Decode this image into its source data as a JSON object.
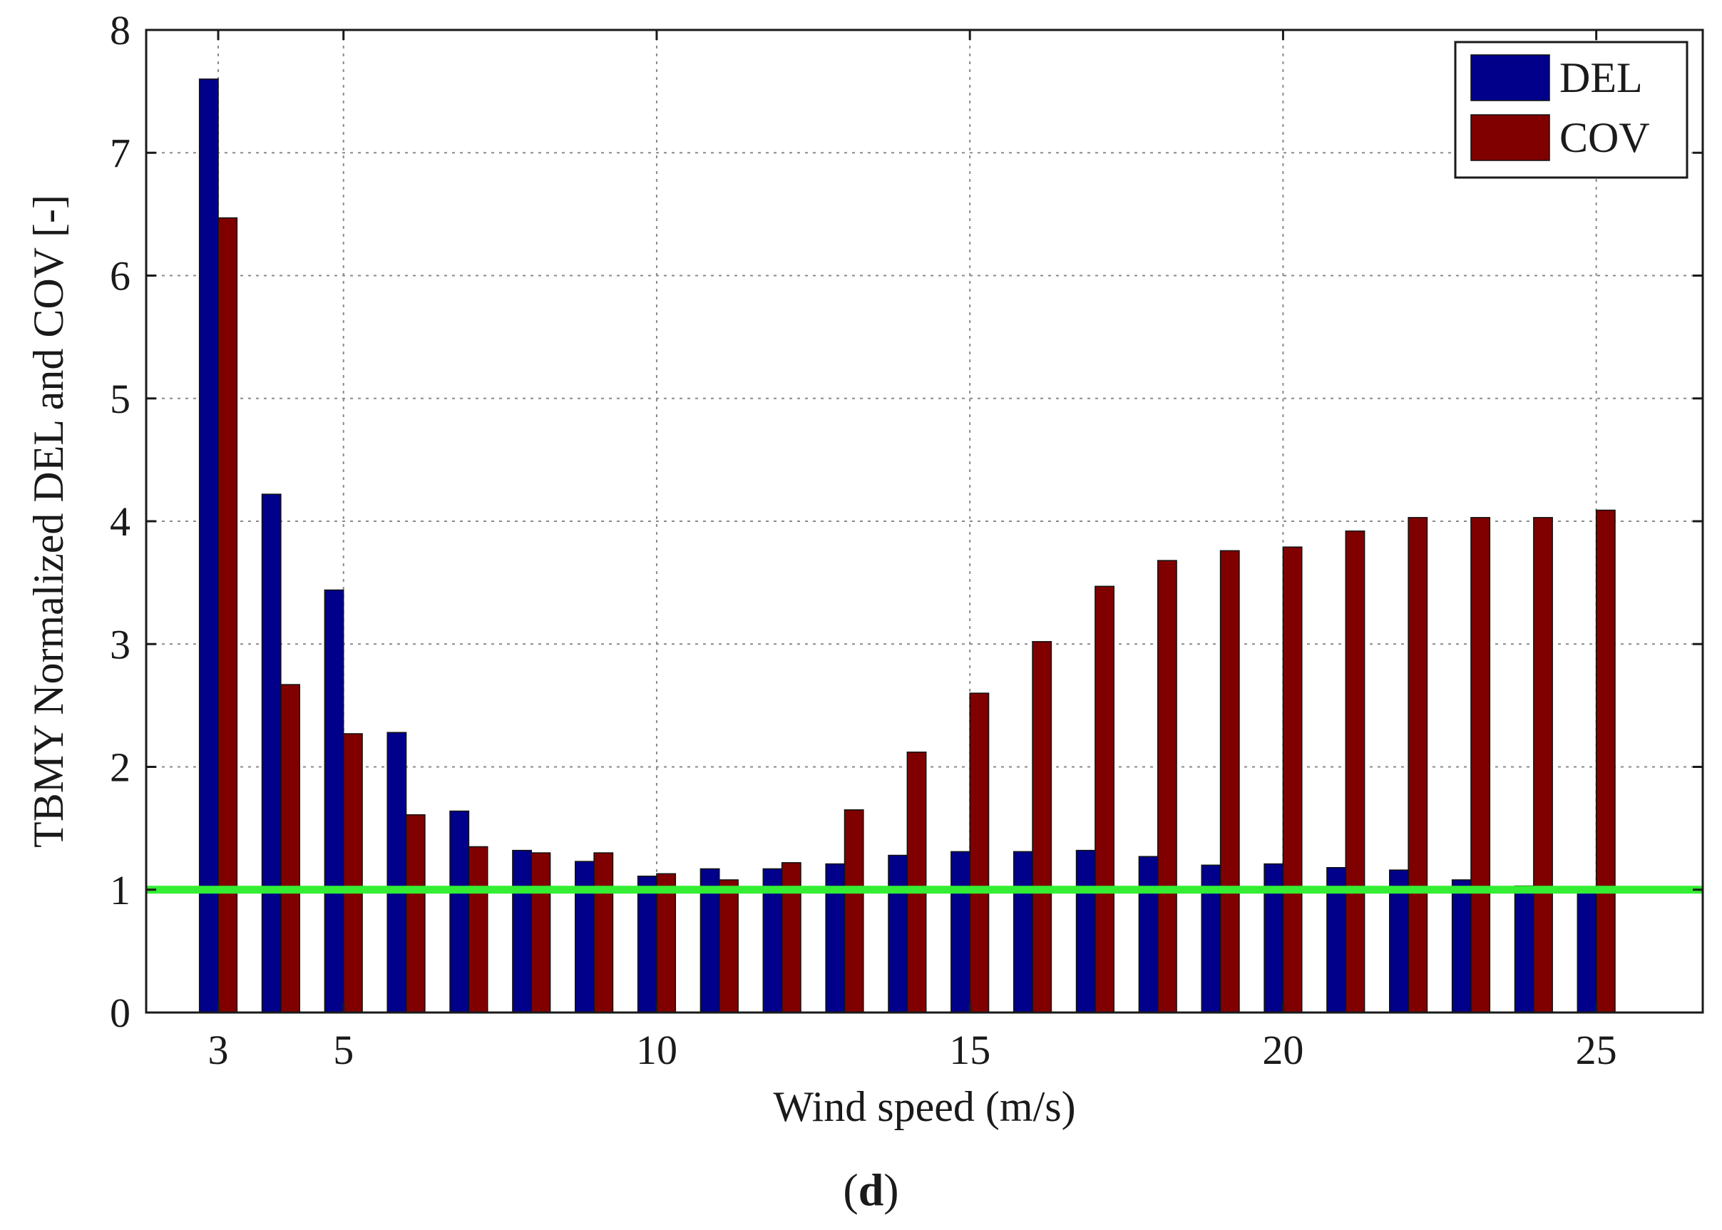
{
  "chart_data": {
    "type": "bar",
    "xlabel": "Wind speed (m/s)",
    "ylabel": "TBMY Normalized DEL and COV [-]",
    "categories": [
      3,
      4,
      5,
      6,
      7,
      8,
      9,
      10,
      11,
      12,
      13,
      14,
      15,
      16,
      17,
      18,
      19,
      20,
      21,
      22,
      23,
      24,
      25
    ],
    "x_ticks": [
      3,
      5,
      10,
      15,
      20,
      25
    ],
    "y_ticks": [
      0,
      1,
      2,
      3,
      4,
      5,
      6,
      7,
      8
    ],
    "xlim": [
      1.85,
      26.7
    ],
    "ylim": [
      0,
      8
    ],
    "grid": true,
    "legend_position": "top-right",
    "series": [
      {
        "name": "DEL",
        "color": "#00008B",
        "values": [
          7.6,
          4.22,
          3.44,
          2.28,
          1.64,
          1.32,
          1.23,
          1.11,
          1.17,
          1.17,
          1.21,
          1.28,
          1.31,
          1.31,
          1.32,
          1.27,
          1.2,
          1.21,
          1.18,
          1.16,
          1.08,
          1.03,
          0.98
        ]
      },
      {
        "name": "COV",
        "color": "#800000",
        "values": [
          6.47,
          2.67,
          2.27,
          1.61,
          1.35,
          1.3,
          1.3,
          1.13,
          1.08,
          1.22,
          1.65,
          2.12,
          2.6,
          3.02,
          3.47,
          3.68,
          3.76,
          3.79,
          3.92,
          4.03,
          4.03,
          4.03,
          4.09
        ]
      }
    ],
    "reference_line": {
      "value": 1,
      "color": "#33EE33"
    }
  },
  "caption": {
    "open": "(",
    "letter": "d",
    "close": ")"
  }
}
